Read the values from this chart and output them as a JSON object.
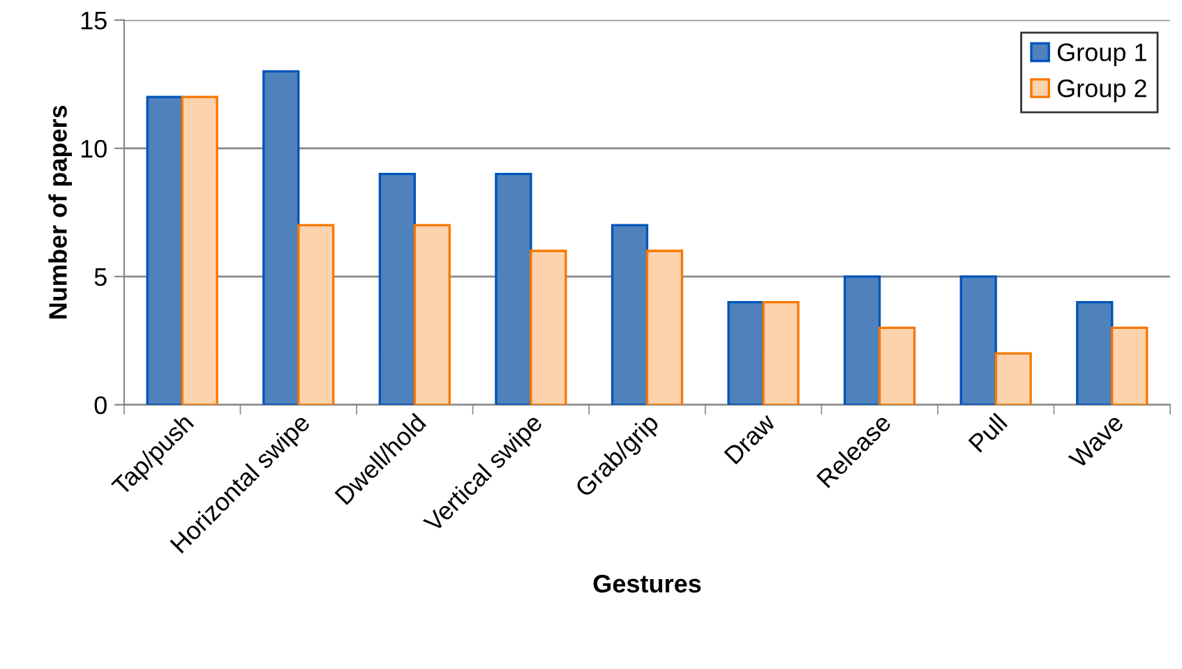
{
  "chart_data": {
    "type": "bar",
    "xlabel": "Gestures",
    "ylabel": "Number of papers",
    "categories": [
      "Tap/push",
      "Horizontal swipe",
      "Dwell/hold",
      "Vertical swipe",
      "Grab/grip",
      "Draw",
      "Release",
      "Pull",
      "Wave"
    ],
    "series": [
      {
        "name": "Group 1",
        "color": "#4f81bd",
        "values": [
          12,
          13,
          9,
          9,
          7,
          4,
          5,
          5,
          4
        ]
      },
      {
        "name": "Group 2",
        "color": "#fcd3ad",
        "values": [
          12,
          7,
          7,
          6,
          6,
          4,
          3,
          2,
          3
        ]
      }
    ],
    "ylim": [
      0,
      15
    ],
    "yticks": [
      0,
      5,
      10,
      15
    ],
    "grid": "y",
    "legend": "top right"
  }
}
